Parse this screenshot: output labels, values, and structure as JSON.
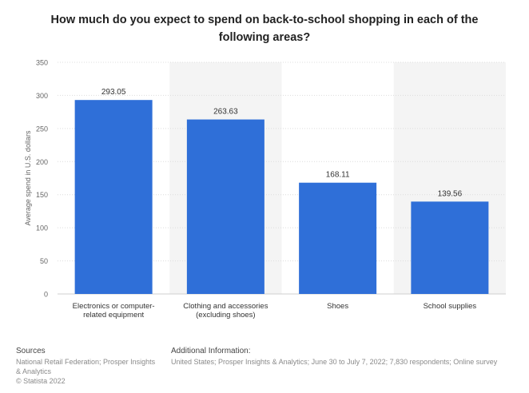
{
  "chart_data": {
    "type": "bar",
    "title": "How much do you expect to spend on back-to-school shopping in each of the following areas?",
    "xlabel": "",
    "ylabel": "Average spend in U.S. dollars",
    "categories": [
      "Electronics or computer-related equipment",
      "Clothing and accessories (excluding shoes)",
      "Shoes",
      "School supplies"
    ],
    "category_label_lines": [
      [
        "Electronics or computer-",
        "related equipment"
      ],
      [
        "Clothing and accessories",
        "(excluding shoes)"
      ],
      [
        "Shoes"
      ],
      [
        "School supplies"
      ]
    ],
    "values": [
      293.05,
      263.63,
      168.11,
      139.56
    ],
    "value_labels": [
      "293.05",
      "263.63",
      "168.11",
      "139.56"
    ],
    "ylim": [
      0,
      350
    ],
    "yticks": [
      0,
      50,
      100,
      150,
      200,
      250,
      300,
      350
    ],
    "grid": true,
    "legend": "none",
    "colors": {
      "bar": "#2f6fd8",
      "band": "#f4f4f4",
      "grid": "#dcdcdc"
    }
  },
  "footer": {
    "sources_heading": "Sources",
    "sources_text": "National Retail Federation; Prosper Insights & Analytics",
    "copyright": "© Statista 2022",
    "additional_heading": "Additional Information:",
    "additional_text": "United States; Prosper Insights & Analytics; June 30 to July 7, 2022; 7,830 respondents; Online survey"
  }
}
